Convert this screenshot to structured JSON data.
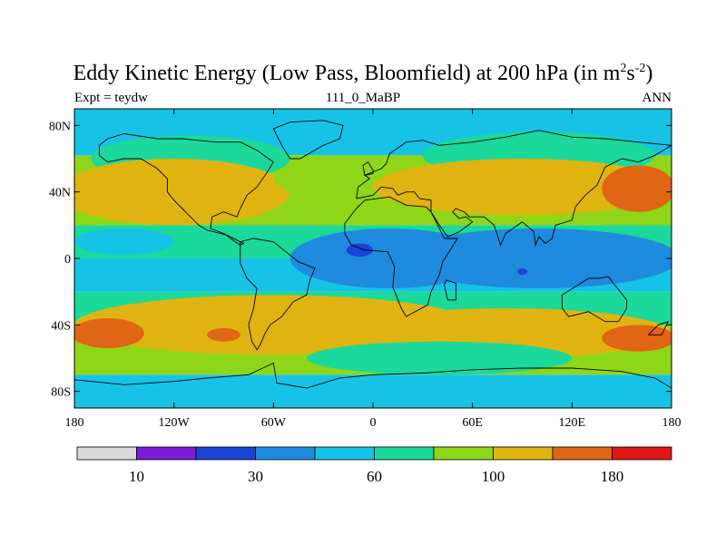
{
  "title": {
    "main": "Eddy Kinetic Energy (Low Pass, Bloomfield) at 200 hPa (in m",
    "unit_exp1": "2",
    "unit_mid": "s",
    "unit_exp2": "-2",
    "close": ")"
  },
  "subtitle": {
    "left": "Expt = teydw",
    "center": "111_0_MaBP",
    "right": "ANN"
  },
  "chart_data": {
    "type": "heatmap",
    "map_projection": "cylindrical-equidistant",
    "x_range": [
      -180,
      180
    ],
    "y_range": [
      -90,
      90
    ],
    "x_ticks": [
      {
        "value": -180,
        "label": "180"
      },
      {
        "value": -120,
        "label": "120W"
      },
      {
        "value": -60,
        "label": "60W"
      },
      {
        "value": 0,
        "label": "0"
      },
      {
        "value": 60,
        "label": "60E"
      },
      {
        "value": 120,
        "label": "120E"
      },
      {
        "value": 180,
        "label": "180"
      }
    ],
    "y_ticks": [
      {
        "value": 80,
        "label": "80N"
      },
      {
        "value": 40,
        "label": "40N"
      },
      {
        "value": 0,
        "label": "0"
      },
      {
        "value": -40,
        "label": "40S"
      },
      {
        "value": -80,
        "label": "80S"
      }
    ],
    "colorbar": {
      "colors": [
        "#d9d9d9",
        "#7a1ed6",
        "#1a44d6",
        "#1e8bde",
        "#16c3e6",
        "#1bd99a",
        "#8fd618",
        "#e0b410",
        "#e06515",
        "#e01515"
      ],
      "labels": [
        {
          "boundary": 1,
          "text": "10"
        },
        {
          "boundary": 3,
          "text": "30"
        },
        {
          "boundary": 5,
          "text": "60"
        },
        {
          "boundary": 7,
          "text": "100"
        },
        {
          "boundary": 9,
          "text": "180"
        }
      ]
    },
    "bands": [
      {
        "lat": [
          62,
          90
        ],
        "level": 4
      },
      {
        "lat": [
          20,
          62
        ],
        "level": 6
      },
      {
        "lat": [
          0,
          20
        ],
        "level": 5
      },
      {
        "lat": [
          -20,
          0
        ],
        "level": 4
      },
      {
        "lat": [
          -40,
          -20
        ],
        "level": 5
      },
      {
        "lat": [
          -70,
          -40
        ],
        "level": 6
      },
      {
        "lat": [
          -90,
          -70
        ],
        "level": 4
      }
    ],
    "blobs": [
      {
        "lon": -110,
        "lat": 60,
        "rx": 60,
        "ry": 14,
        "level": 5
      },
      {
        "lon": 100,
        "lat": 62,
        "rx": 70,
        "ry": 14,
        "level": 5
      },
      {
        "lon": -120,
        "lat": 40,
        "rx": 70,
        "ry": 20,
        "level": 7
      },
      {
        "lon": 90,
        "lat": 43,
        "rx": 90,
        "ry": 17,
        "level": 7
      },
      {
        "lon": -30,
        "lat": 48,
        "rx": 30,
        "ry": 10,
        "level": 6
      },
      {
        "lon": 160,
        "lat": 42,
        "rx": 22,
        "ry": 14,
        "level": 8
      },
      {
        "lon": -150,
        "lat": 10,
        "rx": 30,
        "ry": 8,
        "level": 4
      },
      {
        "lon": 10,
        "lat": 0,
        "rx": 60,
        "ry": 18,
        "level": 3
      },
      {
        "lon": 100,
        "lat": 0,
        "rx": 85,
        "ry": 18,
        "level": 3
      },
      {
        "lon": -8,
        "lat": 5,
        "rx": 8,
        "ry": 4,
        "level": 2
      },
      {
        "lon": 90,
        "lat": -8,
        "rx": 3,
        "ry": 2,
        "level": 2
      },
      {
        "lon": -60,
        "lat": -40,
        "rx": 120,
        "ry": 18,
        "level": 7
      },
      {
        "lon": 80,
        "lat": -45,
        "rx": 100,
        "ry": 15,
        "level": 7
      },
      {
        "lon": -160,
        "lat": -45,
        "rx": 22,
        "ry": 9,
        "level": 8
      },
      {
        "lon": -90,
        "lat": -46,
        "rx": 10,
        "ry": 4,
        "level": 8
      },
      {
        "lon": 160,
        "lat": -48,
        "rx": 22,
        "ry": 8,
        "level": 8
      },
      {
        "lon": 40,
        "lat": -60,
        "rx": 80,
        "ry": 10,
        "level": 5
      }
    ],
    "coastlines": [
      [
        [
          -160,
          72
        ],
        [
          -150,
          75
        ],
        [
          -130,
          72
        ],
        [
          -115,
          72
        ],
        [
          -95,
          70
        ],
        [
          -80,
          70
        ],
        [
          -70,
          65
        ],
        [
          -60,
          58
        ],
        [
          -65,
          50
        ],
        [
          -70,
          43
        ],
        [
          -76,
          38
        ],
        [
          -80,
          30
        ],
        [
          -82,
          25
        ],
        [
          -90,
          28
        ],
        [
          -97,
          25
        ],
        [
          -98,
          18
        ],
        [
          -90,
          15
        ],
        [
          -83,
          10
        ],
        [
          -80,
          8
        ],
        [
          -78,
          9
        ],
        [
          -88,
          14
        ],
        [
          -100,
          17
        ],
        [
          -105,
          20
        ],
        [
          -110,
          25
        ],
        [
          -115,
          30
        ],
        [
          -120,
          35
        ],
        [
          -124,
          40
        ],
        [
          -124,
          48
        ],
        [
          -130,
          54
        ],
        [
          -140,
          60
        ],
        [
          -150,
          60
        ],
        [
          -160,
          58
        ],
        [
          -165,
          62
        ],
        [
          -165,
          68
        ],
        [
          -160,
          72
        ]
      ],
      [
        [
          -80,
          10
        ],
        [
          -72,
          12
        ],
        [
          -60,
          10
        ],
        [
          -50,
          2
        ],
        [
          -45,
          -2
        ],
        [
          -35,
          -6
        ],
        [
          -38,
          -13
        ],
        [
          -40,
          -22
        ],
        [
          -48,
          -26
        ],
        [
          -55,
          -35
        ],
        [
          -62,
          -40
        ],
        [
          -65,
          -45
        ],
        [
          -68,
          -52
        ],
        [
          -70,
          -55
        ],
        [
          -73,
          -50
        ],
        [
          -75,
          -40
        ],
        [
          -72,
          -30
        ],
        [
          -70,
          -18
        ],
        [
          -76,
          -12
        ],
        [
          -80,
          -3
        ],
        [
          -80,
          10
        ]
      ],
      [
        [
          -17,
          15
        ],
        [
          -17,
          21
        ],
        [
          -10,
          30
        ],
        [
          -5,
          35
        ],
        [
          10,
          37
        ],
        [
          20,
          32
        ],
        [
          32,
          31
        ],
        [
          35,
          28
        ],
        [
          43,
          12
        ],
        [
          51,
          12
        ],
        [
          42,
          -2
        ],
        [
          40,
          -10
        ],
        [
          35,
          -20
        ],
        [
          33,
          -28
        ],
        [
          20,
          -35
        ],
        [
          17,
          -30
        ],
        [
          12,
          -17
        ],
        [
          13,
          -5
        ],
        [
          9,
          4
        ],
        [
          -5,
          5
        ],
        [
          -13,
          8
        ],
        [
          -17,
          15
        ]
      ],
      [
        [
          -10,
          36
        ],
        [
          -9,
          43
        ],
        [
          -2,
          48
        ],
        [
          -5,
          50
        ],
        [
          5,
          54
        ],
        [
          8,
          57
        ],
        [
          10,
          63
        ],
        [
          20,
          70
        ],
        [
          30,
          71
        ],
        [
          40,
          68
        ],
        [
          60,
          70
        ],
        [
          80,
          73
        ],
        [
          100,
          77
        ],
        [
          120,
          73
        ],
        [
          140,
          72
        ],
        [
          160,
          70
        ],
        [
          180,
          68
        ],
        [
          170,
          62
        ],
        [
          160,
          58
        ],
        [
          150,
          60
        ],
        [
          140,
          55
        ],
        [
          135,
          44
        ],
        [
          128,
          38
        ],
        [
          122,
          31
        ],
        [
          120,
          23
        ],
        [
          110,
          20
        ],
        [
          108,
          12
        ],
        [
          104,
          9
        ],
        [
          100,
          13
        ],
        [
          98,
          8
        ],
        [
          97,
          16
        ],
        [
          90,
          22
        ],
        [
          80,
          15
        ],
        [
          77,
          8
        ],
        [
          73,
          20
        ],
        [
          67,
          25
        ],
        [
          58,
          25
        ],
        [
          55,
          28
        ],
        [
          50,
          30
        ],
        [
          48,
          28
        ],
        [
          52,
          24
        ],
        [
          56,
          25
        ],
        [
          60,
          22
        ],
        [
          52,
          16
        ],
        [
          45,
          13
        ],
        [
          40,
          20
        ],
        [
          35,
          28
        ],
        [
          35,
          35
        ],
        [
          28,
          36
        ],
        [
          25,
          40
        ],
        [
          20,
          40
        ],
        [
          15,
          38
        ],
        [
          12,
          42
        ],
        [
          5,
          43
        ],
        [
          0,
          38
        ],
        [
          -10,
          36
        ]
      ],
      [
        [
          114,
          -22
        ],
        [
          114,
          -30
        ],
        [
          118,
          -35
        ],
        [
          130,
          -32
        ],
        [
          140,
          -38
        ],
        [
          148,
          -38
        ],
        [
          153,
          -30
        ],
        [
          153,
          -25
        ],
        [
          145,
          -15
        ],
        [
          142,
          -11
        ],
        [
          136,
          -12
        ],
        [
          130,
          -12
        ],
        [
          122,
          -17
        ],
        [
          114,
          -22
        ]
      ],
      [
        [
          -50,
          60
        ],
        [
          -44,
          60
        ],
        [
          -30,
          68
        ],
        [
          -20,
          72
        ],
        [
          -18,
          80
        ],
        [
          -30,
          83
        ],
        [
          -50,
          82
        ],
        [
          -60,
          78
        ],
        [
          -55,
          68
        ],
        [
          -50,
          60
        ]
      ],
      [
        [
          -180,
          -73
        ],
        [
          -150,
          -76
        ],
        [
          -120,
          -74
        ],
        [
          -100,
          -72
        ],
        [
          -75,
          -70
        ],
        [
          -60,
          -63
        ],
        [
          -58,
          -75
        ],
        [
          -40,
          -78
        ],
        [
          -20,
          -72
        ],
        [
          0,
          -70
        ],
        [
          30,
          -69
        ],
        [
          60,
          -67
        ],
        [
          90,
          -66
        ],
        [
          120,
          -66
        ],
        [
          150,
          -68
        ],
        [
          170,
          -72
        ],
        [
          180,
          -78
        ]
      ],
      [
        [
          44,
          -13
        ],
        [
          50,
          -15
        ],
        [
          50,
          -25
        ],
        [
          45,
          -25
        ],
        [
          43,
          -16
        ],
        [
          44,
          -13
        ]
      ],
      [
        [
          166,
          -46
        ],
        [
          172,
          -40
        ],
        [
          178,
          -38
        ],
        [
          174,
          -46
        ],
        [
          166,
          -46
        ]
      ],
      [
        [
          -5,
          50
        ],
        [
          0,
          51
        ],
        [
          0,
          53
        ],
        [
          -3,
          58
        ],
        [
          -6,
          56
        ],
        [
          -5,
          50
        ]
      ]
    ]
  }
}
